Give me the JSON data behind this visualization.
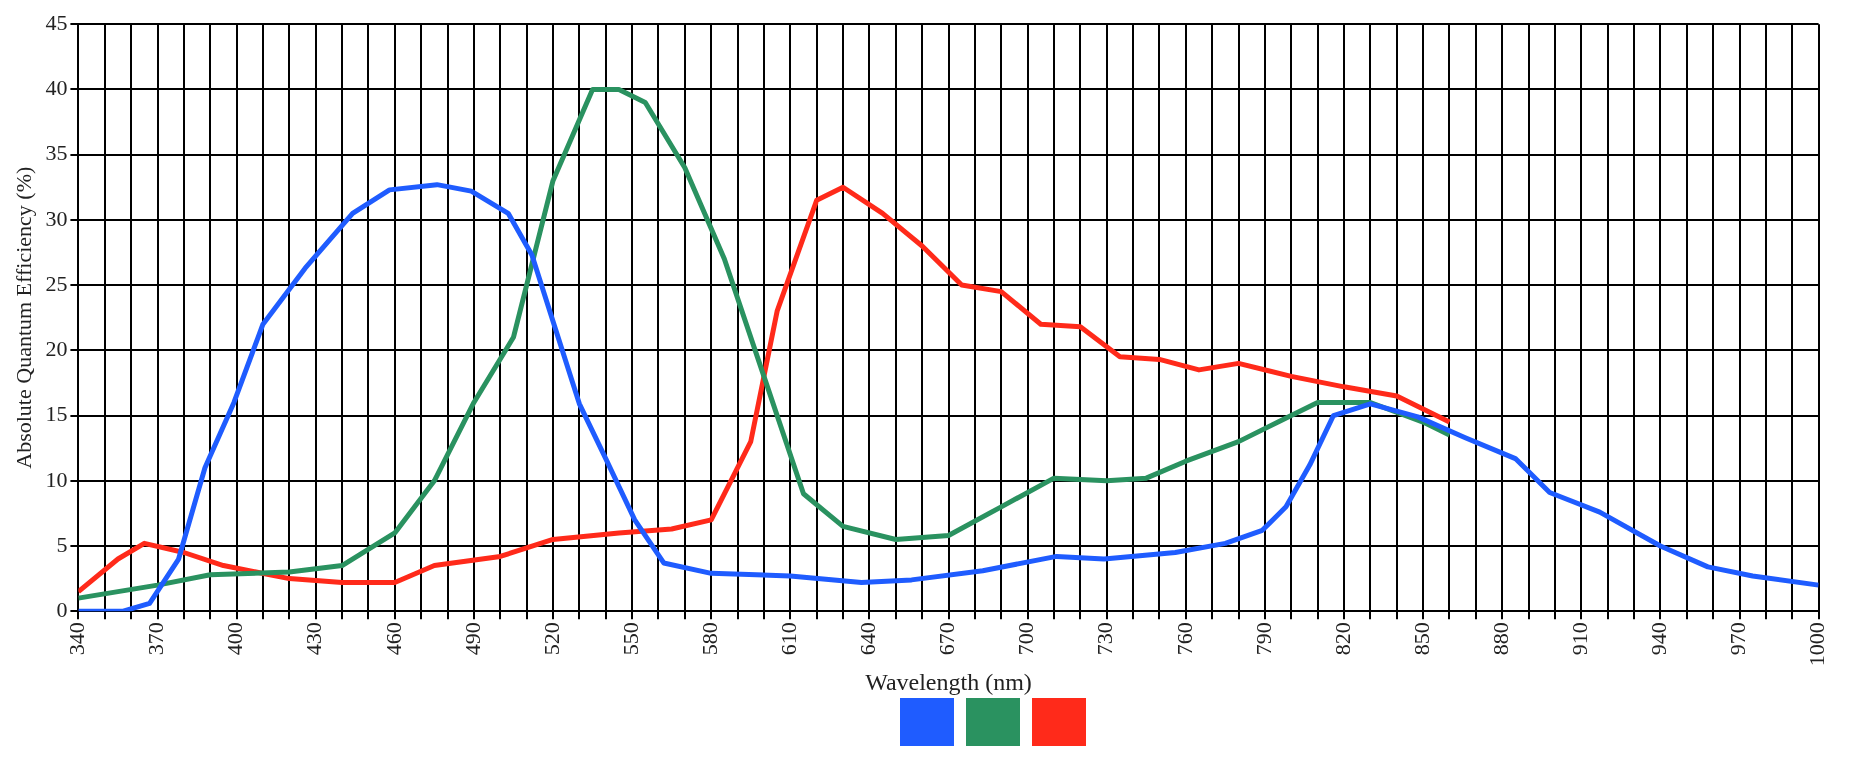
{
  "chart_data": {
    "type": "line",
    "xlabel": "Wavelength (nm)",
    "ylabel": "Absolute Quantum Efficiency (%)",
    "xlim": [
      340,
      1000
    ],
    "ylim": [
      0,
      45
    ],
    "xticks": [
      340,
      {
        "value": 350,
        "label": null
      },
      {
        "value": 360,
        "label": null
      },
      370,
      {
        "value": 380,
        "label": null
      },
      {
        "value": 390,
        "label": null
      },
      400,
      {
        "value": 410,
        "label": null
      },
      {
        "value": 420,
        "label": null
      },
      430,
      {
        "value": 440,
        "label": null
      },
      {
        "value": 450,
        "label": null
      },
      460,
      {
        "value": 470,
        "label": null
      },
      {
        "value": 480,
        "label": null
      },
      490,
      {
        "value": 500,
        "label": null
      },
      {
        "value": 510,
        "label": null
      },
      520,
      {
        "value": 530,
        "label": null
      },
      {
        "value": 540,
        "label": null
      },
      550,
      {
        "value": 560,
        "label": null
      },
      {
        "value": 570,
        "label": null
      },
      580,
      {
        "value": 590,
        "label": null
      },
      {
        "value": 600,
        "label": null
      },
      610,
      {
        "value": 620,
        "label": null
      },
      {
        "value": 630,
        "label": null
      },
      640,
      {
        "value": 650,
        "label": null
      },
      {
        "value": 660,
        "label": null
      },
      670,
      {
        "value": 680,
        "label": null
      },
      {
        "value": 690,
        "label": null
      },
      700,
      {
        "value": 710,
        "label": null
      },
      {
        "value": 720,
        "label": null
      },
      730,
      {
        "value": 740,
        "label": null
      },
      {
        "value": 750,
        "label": null
      },
      760,
      {
        "value": 770,
        "label": null
      },
      {
        "value": 780,
        "label": null
      },
      790,
      {
        "value": 800,
        "label": null
      },
      {
        "value": 810,
        "label": null
      },
      820,
      {
        "value": 830,
        "label": null
      },
      {
        "value": 840,
        "label": null
      },
      850,
      {
        "value": 860,
        "label": null
      },
      {
        "value": 870,
        "label": null
      },
      880,
      {
        "value": 890,
        "label": null
      },
      {
        "value": 900,
        "label": null
      },
      910,
      {
        "value": 920,
        "label": null
      },
      {
        "value": 930,
        "label": null
      },
      940,
      {
        "value": 950,
        "label": null
      },
      {
        "value": 960,
        "label": null
      },
      970,
      {
        "value": 980,
        "label": null
      },
      {
        "value": 990,
        "label": null
      },
      1000
    ],
    "yticks": [
      0,
      5,
      10,
      15,
      20,
      25,
      30,
      35,
      40,
      45
    ],
    "grid": true,
    "series": [
      {
        "color": "#1f5cff",
        "x": [
          340,
          357,
          367,
          378,
          388,
          399,
          410,
          426,
          444,
          458,
          476,
          489,
          503,
          512,
          521,
          530,
          540,
          551,
          562,
          580,
          610,
          637,
          656,
          683,
          711,
          729,
          756,
          775,
          789,
          798,
          807,
          816,
          830,
          848,
          866,
          885,
          898,
          917,
          940,
          958,
          975,
          1000
        ],
        "values": [
          0,
          0,
          0.6,
          4,
          11,
          16,
          22,
          26.3,
          30.5,
          32.3,
          32.7,
          32.2,
          30.5,
          27.3,
          21.6,
          15.9,
          11.7,
          7,
          3.7,
          2.9,
          2.7,
          2.2,
          2.4,
          3.1,
          4.2,
          4,
          4.5,
          5.2,
          6.2,
          8,
          11.2,
          15,
          15.9,
          14.9,
          13.3,
          11.7,
          9.1,
          7.6,
          5,
          3.4,
          2.7,
          2
        ]
      },
      {
        "color": "#2a9260",
        "x": [
          340,
          370,
          390,
          420,
          440,
          460,
          475,
          490,
          505,
          520,
          535,
          545,
          555,
          570,
          585,
          600,
          615,
          630,
          650,
          670,
          690,
          710,
          730,
          745,
          760,
          780,
          795,
          810,
          830,
          850,
          860
        ],
        "values": [
          1,
          2,
          2.8,
          3,
          3.5,
          6,
          10,
          16,
          21,
          33,
          40,
          40,
          39,
          34,
          27,
          18,
          9,
          6.5,
          5.5,
          5.8,
          8,
          10.2,
          10,
          10.2,
          11.5,
          13,
          14.5,
          16,
          16,
          14.5,
          13.5
        ]
      },
      {
        "color": "#ff2a1a",
        "x": [
          340,
          355,
          365,
          380,
          395,
          420,
          440,
          460,
          475,
          500,
          520,
          545,
          565,
          580,
          595,
          605,
          620,
          630,
          645,
          660,
          675,
          690,
          705,
          720,
          735,
          750,
          765,
          780,
          800,
          820,
          840,
          860
        ],
        "values": [
          1.5,
          4,
          5.2,
          4.5,
          3.5,
          2.5,
          2.2,
          2.2,
          3.5,
          4.2,
          5.5,
          6,
          6.3,
          7,
          13,
          23,
          31.5,
          32.5,
          30.5,
          28,
          25,
          24.5,
          22,
          21.8,
          19.5,
          19.3,
          18.5,
          19,
          18,
          17.2,
          16.5,
          14.5
        ]
      }
    ]
  }
}
